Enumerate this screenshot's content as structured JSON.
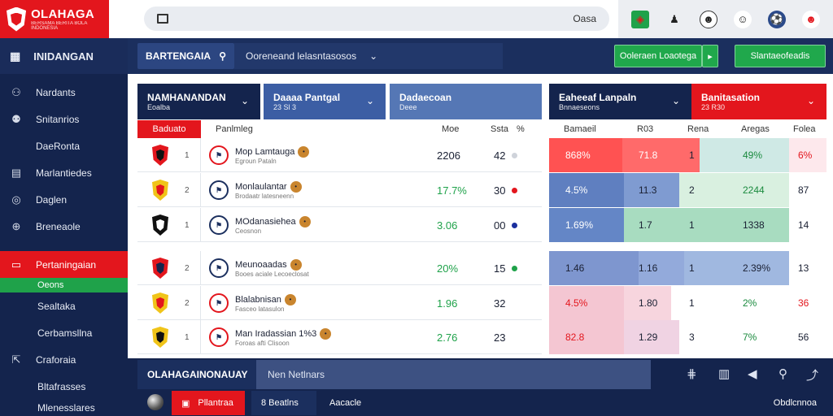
{
  "brand": {
    "name": "OLAHAGA",
    "tagline": "BERSAMA BERITA BOLA INDONESIA"
  },
  "search": {
    "placeholder": "",
    "button": "Oasa"
  },
  "top_icons": [
    "flag-badge-icon",
    "player-icon",
    "face-icon",
    "face-icon",
    "ball-icon",
    "mascot-icon"
  ],
  "sidebar": {
    "header": "INIDANGAN",
    "items": [
      {
        "label": "Nardants",
        "icon": "people-icon"
      },
      {
        "label": "Snitanrios",
        "icon": "group-icon"
      },
      {
        "label": "DaeRonta",
        "icon": ""
      },
      {
        "label": "Marlantiedes",
        "icon": "list-icon"
      },
      {
        "label": "Daglen",
        "icon": "chat-icon"
      },
      {
        "label": "Breneaole",
        "icon": "globe-icon"
      }
    ],
    "active": {
      "label": "Pertaningaian",
      "icon": "card-icon"
    },
    "active_sub": "Oeons",
    "more": [
      "Sealtaka",
      "Cerbamsllna"
    ],
    "lower": [
      {
        "label": "Craforaia",
        "icon": "exit-icon"
      },
      {
        "label": "Bltafrasses",
        "icon": ""
      },
      {
        "label": "Mlenesslares",
        "icon": ""
      }
    ]
  },
  "toolbar": {
    "filter_label": "BARTENGAIA",
    "select_label": "Ooreneand lelasntasosos",
    "btn_green_1": "Ooleraen Loaotega",
    "btn_green_2": "Slantaeofeadis"
  },
  "headers": [
    {
      "title": "NAMHANANDAN",
      "sub": "Eoalba"
    },
    {
      "title": "Daaaa Pantgal",
      "sub": "23 Sl 3"
    },
    {
      "title": "Dadaecoan",
      "sub": "Deee"
    },
    {
      "title": "Eaheeaf Lanpaln",
      "sub": "Bnnaeseons"
    },
    {
      "title": "Banitasation",
      "sub": "23 R30"
    }
  ],
  "cols": {
    "c1": "Baduato",
    "c2": "Panlmleg",
    "c3": "Moe",
    "c4": "Ssta",
    "c5": "%",
    "c6": "Bamaeil",
    "c7": "R03",
    "c8": "Rena",
    "c9": "Aregas",
    "c10": "Folea"
  },
  "rows": [
    {
      "num": "1",
      "name": "Mop Lamtauga",
      "sub": "Egroun Pataln",
      "val": "2206",
      "pts": "42",
      "val_color": "#1a2033",
      "dot": "#cfd3da",
      "s1": "868%",
      "s2": "71.8",
      "s3": "1",
      "s4": "49%",
      "s5": "6%"
    },
    {
      "num": "2",
      "name": "Monlaulantar",
      "sub": "Brodaatr latesneenn",
      "val": "17.7%",
      "pts": "30",
      "val_color": "#1fa24a",
      "dot": "#e3161d",
      "s1": "4.5%",
      "s2": "11.3",
      "s3": "2",
      "s4": "2244",
      "s5": "87"
    },
    {
      "num": "1",
      "name": "MOdanasiehea",
      "sub": "Ceosnon",
      "val": "3.06",
      "pts": "00",
      "val_color": "#1fa24a",
      "dot": "#1b2f9e",
      "s1": "1.69%",
      "s2": "1.7",
      "s3": "1",
      "s4": "1338",
      "s5": "14"
    },
    {
      "num": "2",
      "name": "Meunoaadas",
      "sub": "Booes aciale Lecoeclosat",
      "val": "20%",
      "pts": "15",
      "val_color": "#1fa24a",
      "dot": "#1fa24a",
      "s1": "1.46",
      "s2": "1.16",
      "s3": "1",
      "s4": "2.39%",
      "s5": "13"
    },
    {
      "num": "2",
      "name": "Blalabnisan",
      "sub": "Fasceo latasulon",
      "val": "1.96",
      "pts": "32",
      "val_color": "#1fa24a",
      "dot": "",
      "s1": "4.5%",
      "s2": "1.80",
      "s3": "1",
      "s4": "2%",
      "s5": "36"
    },
    {
      "num": "1",
      "name": "Man Iradassian 1%3",
      "sub": "Foroas afti Clisoon",
      "val": "2.76",
      "pts": "23",
      "val_color": "#1fa24a",
      "dot": "",
      "s1": "82.8",
      "s2": "1.29",
      "s3": "3",
      "s4": "7%",
      "s5": "56"
    }
  ],
  "bottom": {
    "title": "OLAHAGAINONAUAY",
    "input_placeholder": "Nen Netlnars",
    "red_btn": "Pllantraa",
    "count": "8 Beatlns",
    "label": "Aacacle",
    "right": "Obdlcnnoa"
  },
  "colors": {
    "accent_red": "#e3161d",
    "navy": "#14244d",
    "green": "#1fa24a"
  }
}
